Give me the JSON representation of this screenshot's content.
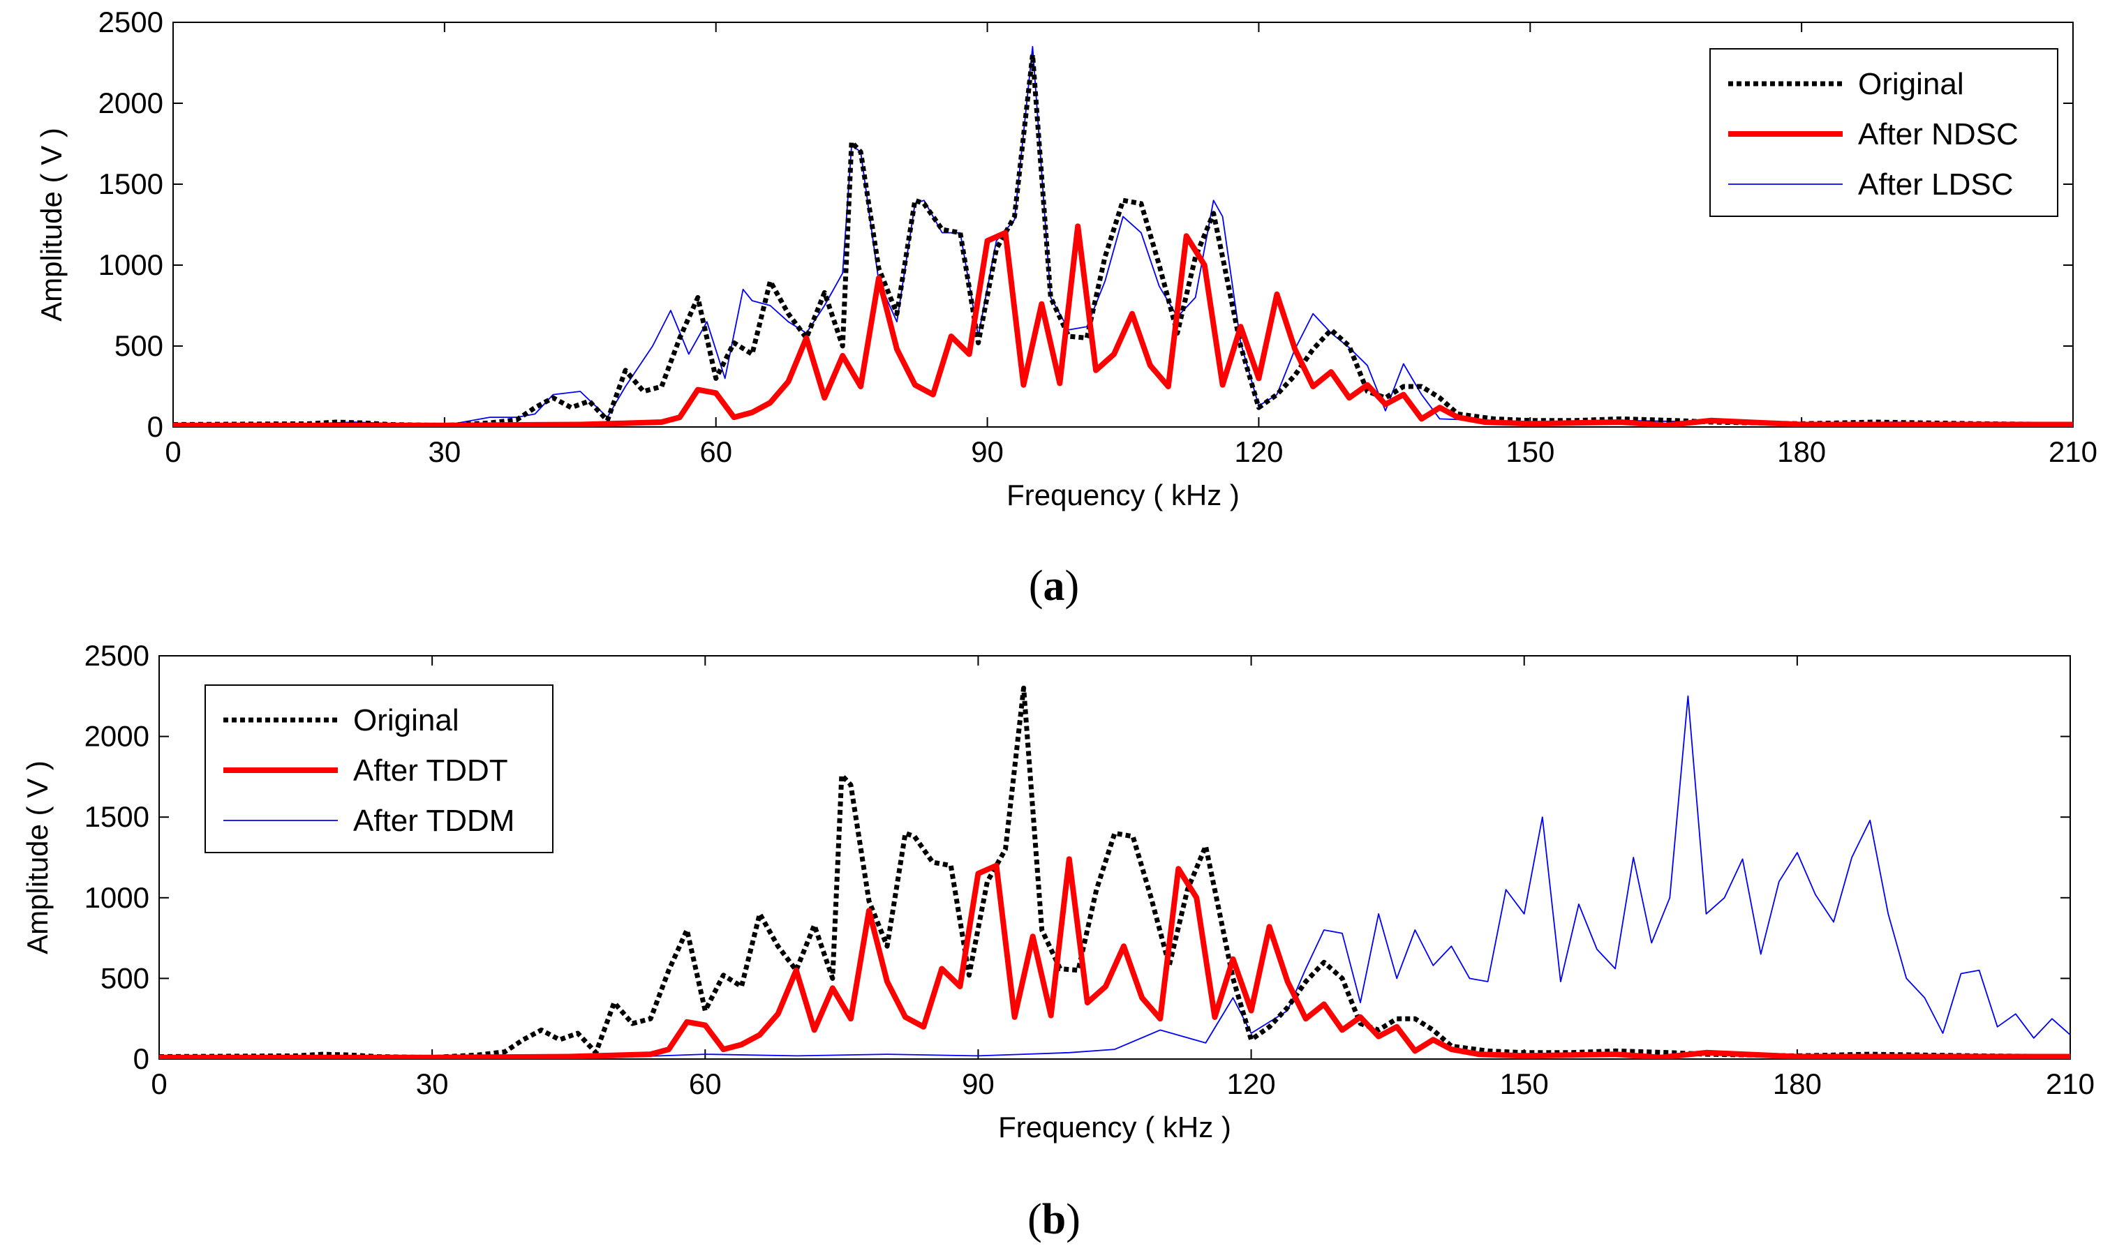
{
  "chart_data": [
    {
      "type": "line",
      "panel_label": "a",
      "xlabel": "Frequency ( kHz )",
      "ylabel": "Amplitude ( V )",
      "xlim": [
        0,
        210
      ],
      "ylim": [
        0,
        2500
      ],
      "xticks": [
        0,
        30,
        60,
        90,
        120,
        150,
        180,
        210
      ],
      "yticks": [
        0,
        500,
        1000,
        1500,
        2000,
        2500
      ],
      "legend_position": "top-right",
      "series": [
        {
          "name": "Original",
          "color": "#000000",
          "style": "dotted",
          "x": [
            0,
            15,
            18,
            21,
            24,
            30,
            35,
            38,
            40,
            42,
            44,
            46,
            48,
            50,
            52,
            54,
            56,
            58,
            60,
            62,
            64,
            66,
            68,
            70,
            72,
            74,
            75,
            76,
            78,
            80,
            82,
            83,
            85,
            87,
            89,
            91,
            93,
            95,
            97,
            99,
            101,
            103,
            105,
            107,
            109,
            111,
            113,
            115,
            116,
            118,
            120,
            122,
            124,
            126,
            128,
            130,
            132,
            134,
            136,
            138,
            140,
            142,
            146,
            150,
            155,
            160,
            166,
            170,
            180,
            188,
            200,
            210
          ],
          "y": [
            15,
            20,
            30,
            25,
            15,
            10,
            25,
            45,
            120,
            180,
            120,
            160,
            40,
            350,
            220,
            250,
            550,
            800,
            300,
            520,
            450,
            900,
            700,
            550,
            830,
            500,
            1760,
            1700,
            980,
            700,
            1400,
            1380,
            1220,
            1200,
            520,
            1100,
            1300,
            2300,
            800,
            560,
            550,
            1050,
            1400,
            1380,
            1000,
            580,
            1050,
            1320,
            1050,
            500,
            120,
            200,
            320,
            480,
            600,
            500,
            220,
            180,
            250,
            250,
            180,
            80,
            50,
            40,
            40,
            50,
            40,
            30,
            20,
            30,
            20,
            15
          ]
        },
        {
          "name": "After NDSC",
          "color": "#ff0000",
          "style": "solid-thick",
          "x": [
            0,
            30,
            45,
            48,
            54,
            56,
            58,
            60,
            62,
            64,
            66,
            68,
            70,
            72,
            74,
            76,
            78,
            80,
            82,
            84,
            86,
            88,
            90,
            92,
            94,
            96,
            98,
            100,
            102,
            104,
            106,
            108,
            110,
            112,
            114,
            116,
            118,
            120,
            122,
            124,
            126,
            128,
            130,
            132,
            134,
            136,
            138,
            140,
            142,
            145,
            150,
            160,
            165,
            170,
            180,
            190,
            210
          ],
          "y": [
            10,
            10,
            15,
            20,
            30,
            60,
            230,
            210,
            60,
            90,
            150,
            280,
            550,
            180,
            440,
            250,
            920,
            480,
            260,
            200,
            560,
            450,
            1150,
            1200,
            260,
            760,
            270,
            1240,
            350,
            450,
            700,
            380,
            250,
            1180,
            1000,
            260,
            620,
            300,
            820,
            480,
            250,
            340,
            180,
            260,
            140,
            200,
            50,
            120,
            60,
            30,
            20,
            30,
            10,
            40,
            15,
            15,
            15
          ]
        },
        {
          "name": "After LDSC",
          "color": "#0000ff",
          "style": "thin",
          "x": [
            0,
            15,
            20,
            25,
            30,
            35,
            38,
            40,
            42,
            45,
            48,
            50,
            53,
            55,
            57,
            59,
            61,
            63,
            64,
            66,
            68,
            70,
            72,
            74,
            75,
            76,
            78,
            80,
            82,
            83,
            85,
            87,
            89,
            91,
            93,
            95,
            97,
            99,
            101,
            103,
            105,
            107,
            109,
            111,
            113,
            115,
            116,
            118,
            120,
            122,
            124,
            126,
            128,
            130,
            132,
            134,
            136,
            138,
            140,
            150,
            160,
            170,
            180,
            190,
            210
          ],
          "y": [
            10,
            20,
            30,
            20,
            10,
            60,
            60,
            80,
            200,
            220,
            60,
            250,
            500,
            720,
            450,
            650,
            300,
            850,
            780,
            750,
            650,
            580,
            750,
            950,
            1740,
            1700,
            900,
            650,
            1380,
            1400,
            1200,
            1200,
            560,
            1150,
            1280,
            2350,
            800,
            600,
            620,
            900,
            1300,
            1200,
            870,
            680,
            800,
            1400,
            1300,
            520,
            130,
            200,
            480,
            700,
            580,
            490,
            380,
            100,
            390,
            200,
            50,
            30,
            40,
            30,
            20,
            30,
            15
          ]
        }
      ]
    },
    {
      "type": "line",
      "panel_label": "b",
      "xlabel": "Frequency ( kHz )",
      "ylabel": "Amplitude ( V )",
      "xlim": [
        0,
        210
      ],
      "ylim": [
        0,
        2500
      ],
      "xticks": [
        0,
        30,
        60,
        90,
        120,
        150,
        180,
        210
      ],
      "yticks": [
        0,
        500,
        1000,
        1500,
        2000,
        2500
      ],
      "legend_position": "top-left",
      "series": [
        {
          "name": "Original",
          "color": "#000000",
          "style": "dotted",
          "x": [
            0,
            15,
            18,
            21,
            24,
            30,
            35,
            38,
            40,
            42,
            44,
            46,
            48,
            50,
            52,
            54,
            56,
            58,
            60,
            62,
            64,
            66,
            68,
            70,
            72,
            74,
            75,
            76,
            78,
            80,
            82,
            83,
            85,
            87,
            89,
            91,
            93,
            95,
            97,
            99,
            101,
            103,
            105,
            107,
            109,
            111,
            113,
            115,
            116,
            118,
            120,
            122,
            124,
            126,
            128,
            130,
            132,
            134,
            136,
            138,
            140,
            142,
            146,
            150,
            155,
            160,
            166,
            170,
            180,
            188,
            200,
            210
          ],
          "y": [
            15,
            20,
            30,
            25,
            15,
            10,
            25,
            45,
            120,
            180,
            120,
            160,
            40,
            350,
            220,
            250,
            550,
            800,
            300,
            520,
            450,
            900,
            700,
            550,
            830,
            500,
            1760,
            1700,
            980,
            700,
            1400,
            1380,
            1220,
            1200,
            520,
            1100,
            1300,
            2300,
            800,
            560,
            550,
            1050,
            1400,
            1380,
            1000,
            580,
            1050,
            1320,
            1050,
            500,
            120,
            200,
            320,
            480,
            600,
            500,
            220,
            180,
            250,
            250,
            180,
            80,
            50,
            40,
            40,
            50,
            40,
            30,
            20,
            30,
            20,
            15
          ]
        },
        {
          "name": "After TDDT",
          "color": "#ff0000",
          "style": "solid-thick",
          "x": [
            0,
            30,
            45,
            48,
            54,
            56,
            58,
            60,
            62,
            64,
            66,
            68,
            70,
            72,
            74,
            76,
            78,
            80,
            82,
            84,
            86,
            88,
            90,
            92,
            94,
            96,
            98,
            100,
            102,
            104,
            106,
            108,
            110,
            112,
            114,
            116,
            118,
            120,
            122,
            124,
            126,
            128,
            130,
            132,
            134,
            136,
            138,
            140,
            142,
            145,
            150,
            160,
            165,
            170,
            180,
            190,
            210
          ],
          "y": [
            10,
            10,
            15,
            20,
            30,
            60,
            230,
            210,
            60,
            90,
            150,
            280,
            550,
            180,
            440,
            250,
            920,
            480,
            260,
            200,
            560,
            450,
            1150,
            1200,
            260,
            760,
            270,
            1240,
            350,
            450,
            700,
            380,
            250,
            1180,
            1000,
            260,
            620,
            300,
            820,
            480,
            250,
            340,
            180,
            260,
            140,
            200,
            50,
            120,
            60,
            30,
            20,
            30,
            10,
            40,
            15,
            15,
            15
          ]
        },
        {
          "name": "After TDDM",
          "color": "#0000ff",
          "style": "thin",
          "x": [
            0,
            50,
            60,
            70,
            80,
            90,
            95,
            100,
            105,
            110,
            115,
            118,
            120,
            124,
            126,
            128,
            130,
            132,
            134,
            136,
            138,
            140,
            142,
            144,
            146,
            148,
            150,
            152,
            154,
            156,
            158,
            160,
            162,
            164,
            166,
            168,
            170,
            172,
            174,
            176,
            178,
            180,
            182,
            184,
            186,
            188,
            190,
            192,
            194,
            196,
            198,
            200,
            202,
            204,
            206,
            208,
            210
          ],
          "y": [
            10,
            10,
            30,
            20,
            30,
            20,
            30,
            40,
            60,
            180,
            100,
            380,
            160,
            300,
            560,
            800,
            780,
            350,
            900,
            500,
            800,
            580,
            700,
            500,
            480,
            1050,
            900,
            1500,
            480,
            960,
            680,
            560,
            1250,
            720,
            1000,
            2250,
            900,
            1000,
            1240,
            650,
            1100,
            1280,
            1020,
            850,
            1250,
            1480,
            900,
            500,
            380,
            160,
            530,
            550,
            200,
            280,
            130,
            250,
            150
          ]
        }
      ]
    }
  ]
}
